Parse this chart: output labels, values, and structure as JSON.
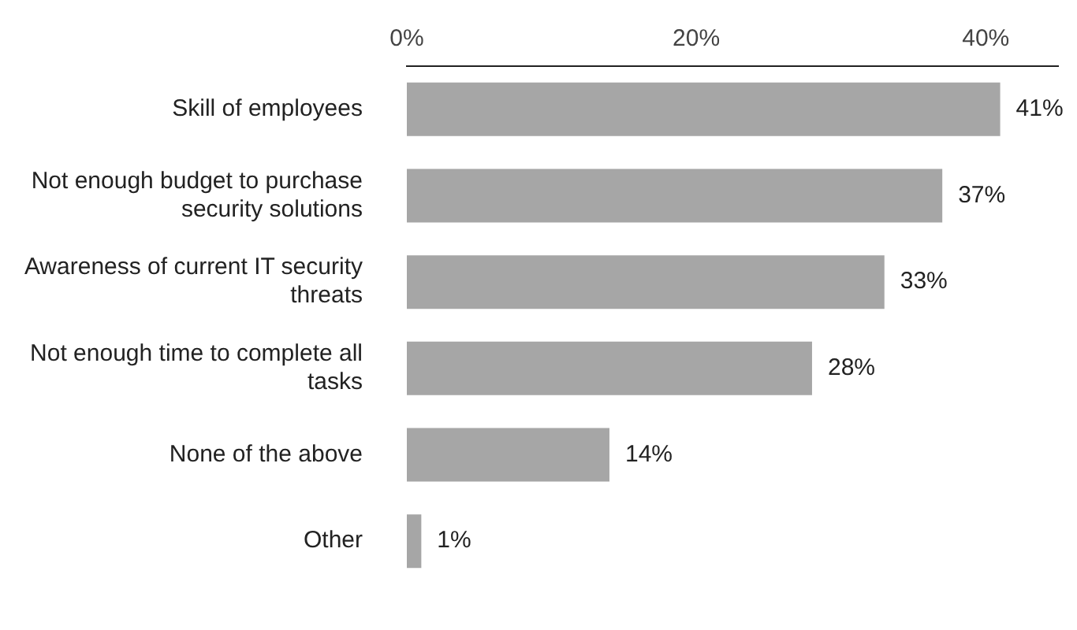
{
  "chart_data": {
    "type": "bar",
    "orientation": "horizontal",
    "categories": [
      "Skill of employees",
      "Not enough budget to purchase security solutions",
      "Awareness of current IT security threats",
      "Not enough time to complete all tasks",
      "None of the above",
      "Other"
    ],
    "values": [
      41,
      37,
      33,
      28,
      14,
      1
    ],
    "value_labels": [
      "41%",
      "37%",
      "33%",
      "28%",
      "14%",
      "1%"
    ],
    "color": "#a6a6a6",
    "xlim": [
      0,
      45
    ],
    "xticks": [
      {
        "value": 0,
        "label": "0%"
      },
      {
        "value": 20,
        "label": "20%"
      },
      {
        "value": 40,
        "label": "40%"
      }
    ],
    "grid": false,
    "legend": false
  }
}
